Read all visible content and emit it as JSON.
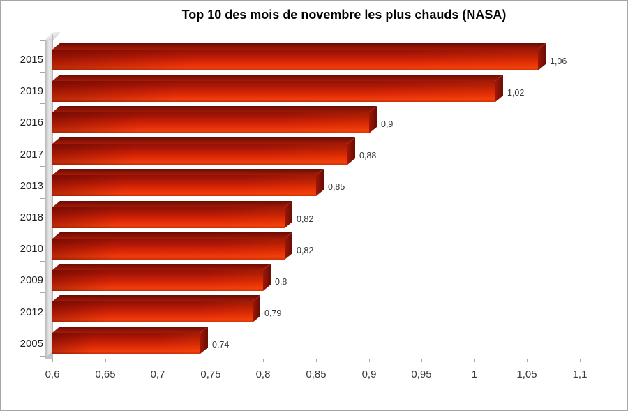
{
  "window": {
    "background": "#ffffff",
    "border_color": "#a6a6a6"
  },
  "chart_data": {
    "type": "bar",
    "orientation": "horizontal",
    "style": "3d-bars",
    "title": "Top 10 des mois de novembre les plus chauds (NASA)",
    "categories": [
      "2015",
      "2019",
      "2016",
      "2017",
      "2013",
      "2018",
      "2010",
      "2009",
      "2012",
      "2005"
    ],
    "values": [
      1.06,
      1.02,
      0.9,
      0.88,
      0.85,
      0.82,
      0.82,
      0.8,
      0.79,
      0.74
    ],
    "value_labels": [
      "1,06",
      "1,02",
      "0,9",
      "0,88",
      "0,85",
      "0,82",
      "0,82",
      "0,8",
      "0,79",
      "0,74"
    ],
    "xlabel": "",
    "ylabel": "",
    "xlim": [
      0.6,
      1.1
    ],
    "x_ticks": [
      0.6,
      0.65,
      0.7,
      0.75,
      0.8,
      0.85,
      0.9,
      0.95,
      1.0,
      1.05,
      1.1
    ],
    "x_tick_labels": [
      "0,6",
      "0,65",
      "0,7",
      "0,75",
      "0,8",
      "0,85",
      "0,9",
      "0,95",
      "1",
      "1,05",
      "1,1"
    ],
    "grid": false,
    "legend": false,
    "colors": {
      "bar_main": "#e02c07",
      "bar_dark_top": "#8a1305",
      "bar_side": "#7c1005",
      "axis": "#a6a6a6",
      "tick_label": "#3a3a3a",
      "value_label": "#333333",
      "title": "#000000",
      "wall": "#d9d9d9"
    }
  }
}
